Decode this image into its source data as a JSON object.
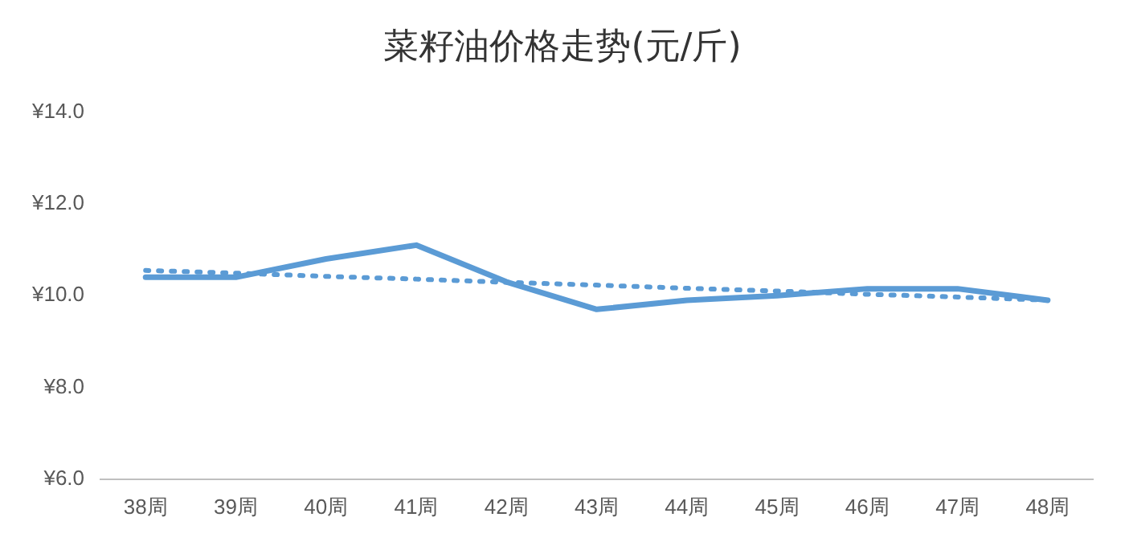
{
  "chart_data": {
    "type": "line",
    "title": "菜籽油价格走势(元/斤)",
    "categories": [
      "38周",
      "39周",
      "40周",
      "41周",
      "42周",
      "43周",
      "44周",
      "45周",
      "46周",
      "47周",
      "48周"
    ],
    "series": [
      {
        "color": "#5b9bd5",
        "values": [
          10.4,
          10.4,
          10.8,
          11.1,
          10.3,
          9.7,
          9.9,
          10.0,
          10.15,
          10.15,
          9.9
        ],
        "line_style": "solid"
      },
      {
        "color": "#5b9bd5",
        "values": [
          10.55,
          10.49,
          10.42,
          10.36,
          10.29,
          10.23,
          10.16,
          10.1,
          10.03,
          9.97,
          9.9
        ],
        "line_style": "dotted"
      }
    ],
    "ylim": [
      6,
      14
    ],
    "yticks": [
      {
        "value": 6,
        "label": "¥6.0"
      },
      {
        "value": 8,
        "label": "¥8.0"
      },
      {
        "value": 10,
        "label": "¥10.0"
      },
      {
        "value": 12,
        "label": "¥12.0"
      },
      {
        "value": 14,
        "label": "¥14.0"
      }
    ],
    "grid": false,
    "legend": false,
    "marker": "none"
  }
}
